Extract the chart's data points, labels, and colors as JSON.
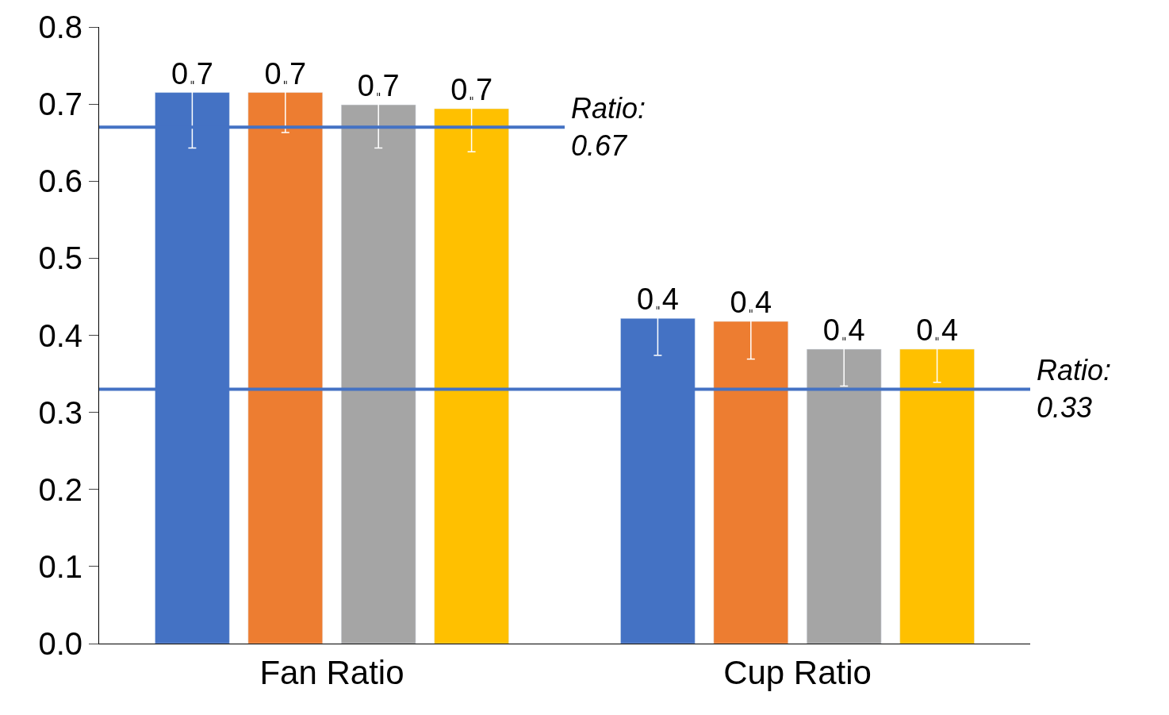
{
  "chart_data": {
    "type": "bar",
    "categories": [
      "Fan Ratio",
      "Cup Ratio"
    ],
    "series": [
      {
        "color": "#4472c4",
        "values": [
          0.715,
          0.422
        ],
        "errors": [
          0.072,
          0.048
        ],
        "value_labels": [
          "0.7",
          "0.4"
        ]
      },
      {
        "color": "#ed7d31",
        "values": [
          0.715,
          0.418
        ],
        "errors": [
          0.052,
          0.049
        ],
        "value_labels": [
          "0.7",
          "0.4"
        ]
      },
      {
        "color": "#a5a5a5",
        "values": [
          0.699,
          0.382
        ],
        "errors": [
          0.056,
          0.048
        ],
        "value_labels": [
          "0.7",
          "0.4"
        ]
      },
      {
        "color": "#ffc000",
        "values": [
          0.694,
          0.382
        ],
        "errors": [
          0.056,
          0.043
        ],
        "value_labels": [
          "0.7",
          "0.4"
        ]
      }
    ],
    "ylim": [
      0,
      0.8
    ],
    "yticks": [
      {
        "value": 0,
        "label": "0.0"
      },
      0.1,
      0.2,
      0.3,
      0.4,
      0.5,
      0.6,
      0.7,
      0.8
    ],
    "ref_lines": [
      {
        "axis": "y",
        "value": 0.67,
        "label": "Ratio:\n0.67",
        "color": "#4472c4"
      },
      {
        "axis": "y",
        "value": 0.33,
        "label": "Ratio:\n0.33",
        "color": "#4472c4"
      }
    ],
    "legend": false
  }
}
